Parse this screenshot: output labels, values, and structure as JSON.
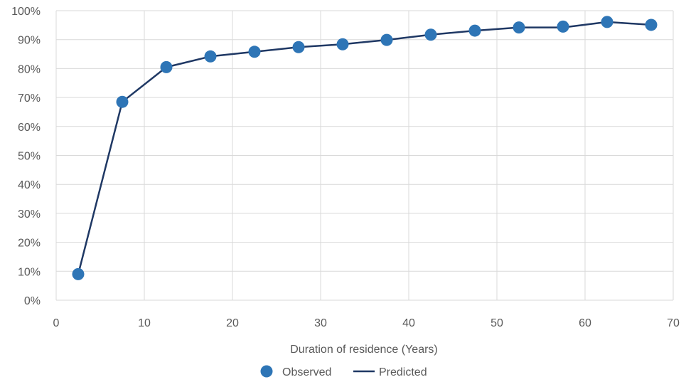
{
  "chart_data": {
    "type": "line",
    "xlabel": "Duration of residence (Years)",
    "ylabel": "",
    "xlim": [
      0,
      70
    ],
    "ylim": [
      0,
      1
    ],
    "x_ticks": [
      0,
      10,
      20,
      30,
      40,
      50,
      60,
      70
    ],
    "x_tick_labels": [
      "0",
      "10",
      "20",
      "30",
      "40",
      "50",
      "60",
      "70"
    ],
    "y_ticks": [
      0,
      0.1,
      0.2,
      0.3,
      0.4,
      0.5,
      0.6,
      0.7,
      0.8,
      0.9,
      1.0
    ],
    "y_tick_labels": [
      "0%",
      "10%",
      "20%",
      "30%",
      "40%",
      "50%",
      "60%",
      "70%",
      "80%",
      "90%",
      "100%"
    ],
    "grid": true,
    "legend_position": "bottom",
    "x": [
      2.5,
      7.5,
      12.5,
      17.5,
      22.5,
      27.5,
      32.5,
      37.5,
      42.5,
      47.5,
      52.5,
      57.5,
      62.5,
      67.5
    ],
    "series": [
      {
        "name": "Observed",
        "kind": "scatter",
        "color": "#2e75b6",
        "values": [
          0.09,
          0.685,
          0.805,
          0.842,
          0.858,
          0.874,
          0.884,
          0.899,
          0.917,
          0.931,
          0.942,
          0.945,
          0.961,
          0.951
        ]
      },
      {
        "name": "Predicted",
        "kind": "line",
        "color": "#1f3864",
        "values": [
          0.09,
          0.685,
          0.805,
          0.842,
          0.858,
          0.874,
          0.884,
          0.899,
          0.917,
          0.931,
          0.942,
          0.942,
          0.961,
          0.951
        ]
      }
    ]
  }
}
